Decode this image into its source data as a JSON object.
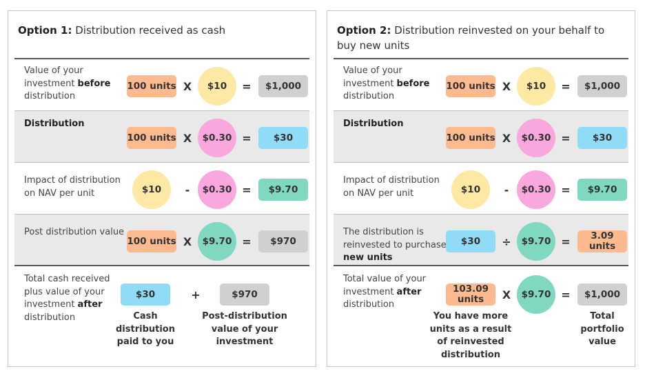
{
  "colors": {
    "units": "#fdba8e",
    "price": "#fde8a4",
    "total": "#d0d0d0",
    "distribution": "#f9a7dc",
    "cash": "#90dcf6",
    "nav": "#80d8c0",
    "row_gray": "#e9e9e9"
  },
  "panels": [
    {
      "title_bold": "Option 1:",
      "title_rest": " Distribution received as cash",
      "rows": [
        {
          "label": [
            {
              "t": "Value of your investment "
            },
            {
              "t": "before",
              "b": true
            },
            {
              "t": " distribution"
            }
          ],
          "items": [
            {
              "k": "rect",
              "t": "100 units",
              "c": "units"
            },
            {
              "k": "op",
              "t": "X"
            },
            {
              "k": "circ",
              "t": "$10",
              "c": "price"
            },
            {
              "k": "op",
              "t": "="
            },
            {
              "k": "rect",
              "t": "$1,000",
              "c": "total"
            }
          ]
        },
        {
          "label": [
            {
              "t": "Distribution",
              "b": true
            }
          ],
          "items": [
            {
              "k": "rect",
              "t": "100 units",
              "c": "units"
            },
            {
              "k": "op",
              "t": "X"
            },
            {
              "k": "circ",
              "t": "$0.30",
              "c": "distribution"
            },
            {
              "k": "op",
              "t": "="
            },
            {
              "k": "rect",
              "t": "$30",
              "c": "cash"
            }
          ]
        },
        {
          "label": [
            {
              "t": "Impact of distribution on NAV per unit"
            }
          ],
          "items": [
            {
              "k": "circ",
              "t": "$10",
              "c": "price"
            },
            {
              "k": "op",
              "t": "-"
            },
            {
              "k": "circ",
              "t": "$0.30",
              "c": "distribution"
            },
            {
              "k": "op",
              "t": "="
            },
            {
              "k": "rect",
              "t": "$9.70",
              "c": "nav"
            }
          ]
        },
        {
          "label": [
            {
              "t": "Post distribution value"
            }
          ],
          "items": [
            {
              "k": "rect",
              "t": "100 units",
              "c": "units"
            },
            {
              "k": "op",
              "t": "X"
            },
            {
              "k": "circ",
              "t": "$9.70",
              "c": "nav"
            },
            {
              "k": "op",
              "t": "="
            },
            {
              "k": "rect",
              "t": "$970",
              "c": "total"
            }
          ]
        }
      ],
      "bottom": {
        "label": [
          {
            "t": "Total cash received plus value of your investment "
          },
          {
            "t": "after",
            "b": true
          },
          {
            "t": " distribution"
          }
        ],
        "items": [
          {
            "k": "rect",
            "t": "$30",
            "c": "cash"
          },
          {
            "k": "op",
            "t": "+"
          },
          {
            "k": "rect",
            "t": "$970",
            "c": "total"
          }
        ],
        "captions": [
          "Cash distribution paid to you",
          "Post-distribution value of your investment"
        ]
      }
    },
    {
      "title_bold": "Option 2:",
      "title_rest": " Distribution reinvested on your behalf to buy new units",
      "rows": [
        {
          "label": [
            {
              "t": "Value of your investment "
            },
            {
              "t": "before",
              "b": true
            },
            {
              "t": " distribution"
            }
          ],
          "items": [
            {
              "k": "rect",
              "t": "100 units",
              "c": "units"
            },
            {
              "k": "op",
              "t": "X"
            },
            {
              "k": "circ",
              "t": "$10",
              "c": "price"
            },
            {
              "k": "op",
              "t": "="
            },
            {
              "k": "rect",
              "t": "$1,000",
              "c": "total"
            }
          ]
        },
        {
          "label": [
            {
              "t": "Distribution",
              "b": true
            }
          ],
          "items": [
            {
              "k": "rect",
              "t": "100 units",
              "c": "units"
            },
            {
              "k": "op",
              "t": "X"
            },
            {
              "k": "circ",
              "t": "$0.30",
              "c": "distribution"
            },
            {
              "k": "op",
              "t": "="
            },
            {
              "k": "rect",
              "t": "$30",
              "c": "cash"
            }
          ]
        },
        {
          "label": [
            {
              "t": "Impact of distribution on NAV per unit"
            }
          ],
          "items": [
            {
              "k": "circ",
              "t": "$10",
              "c": "price"
            },
            {
              "k": "op",
              "t": "-"
            },
            {
              "k": "circ",
              "t": "$0.30",
              "c": "distribution"
            },
            {
              "k": "op",
              "t": "="
            },
            {
              "k": "rect",
              "t": "$9.70",
              "c": "nav"
            }
          ]
        },
        {
          "label": [
            {
              "t": "The distribution is reinvested to purchase "
            },
            {
              "t": "new units",
              "b": true
            }
          ],
          "items": [
            {
              "k": "rect",
              "t": "$30",
              "c": "cash"
            },
            {
              "k": "op",
              "t": "÷"
            },
            {
              "k": "circ",
              "t": "$9.70",
              "c": "nav"
            },
            {
              "k": "op",
              "t": "="
            },
            {
              "k": "rect",
              "t": "3.09 units",
              "c": "units"
            }
          ]
        }
      ],
      "bottom": {
        "label": [
          {
            "t": "Total value of your investment "
          },
          {
            "t": "after",
            "b": true
          },
          {
            "t": " distribution"
          }
        ],
        "items": [
          {
            "k": "rect",
            "t": "103.09 units",
            "c": "units"
          },
          {
            "k": "op",
            "t": "X"
          },
          {
            "k": "circ",
            "t": "$9.70",
            "c": "nav"
          },
          {
            "k": "op",
            "t": "="
          },
          {
            "k": "rect",
            "t": "$1,000",
            "c": "total"
          }
        ],
        "captions": [
          "You have more units as a result of reinvested distribution",
          "Total portfolio value"
        ]
      }
    }
  ]
}
